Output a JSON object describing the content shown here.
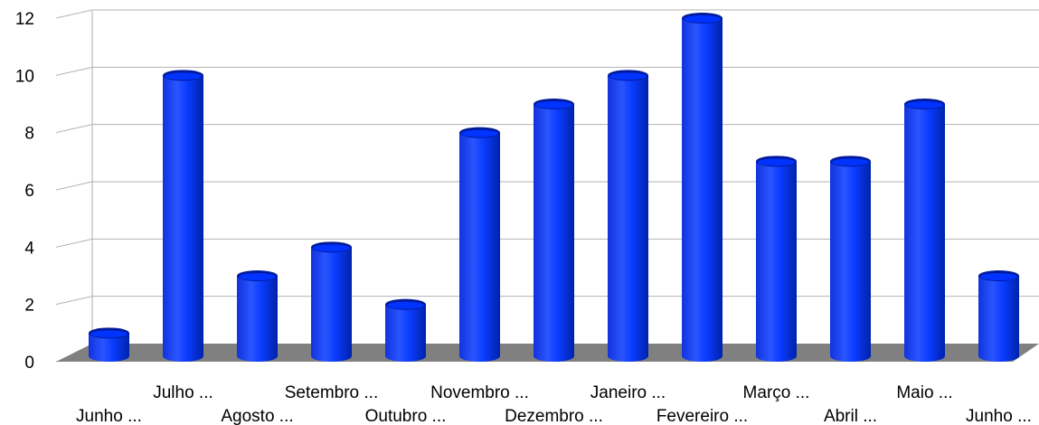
{
  "chart_data": {
    "type": "bar",
    "style": "3d-cylinder",
    "categories": [
      "Junho ...",
      "Julho ...",
      "Agosto ...",
      "Setembro ...",
      "Outubro ...",
      "Novembro ...",
      "Dezembro ...",
      "Janeiro ...",
      "Fevereiro ...",
      "Março ...",
      "Abril ...",
      "Maio ...",
      "Junho ..."
    ],
    "values": [
      1,
      10,
      3,
      4,
      2,
      8,
      9,
      10,
      12,
      7,
      7,
      9,
      3
    ],
    "title": "",
    "xlabel": "",
    "ylabel": "",
    "ylim": [
      0,
      12
    ],
    "yticks": [
      0,
      2,
      4,
      6,
      8,
      10,
      12
    ],
    "grid": true,
    "legend": "none",
    "colors": {
      "bar": "#0033ff",
      "bar_dark": "#001a99",
      "bar_light": "#4d7aff",
      "floor": "#808080",
      "gridline": "#b3b3b3",
      "wall": "#c8c8c8"
    }
  }
}
